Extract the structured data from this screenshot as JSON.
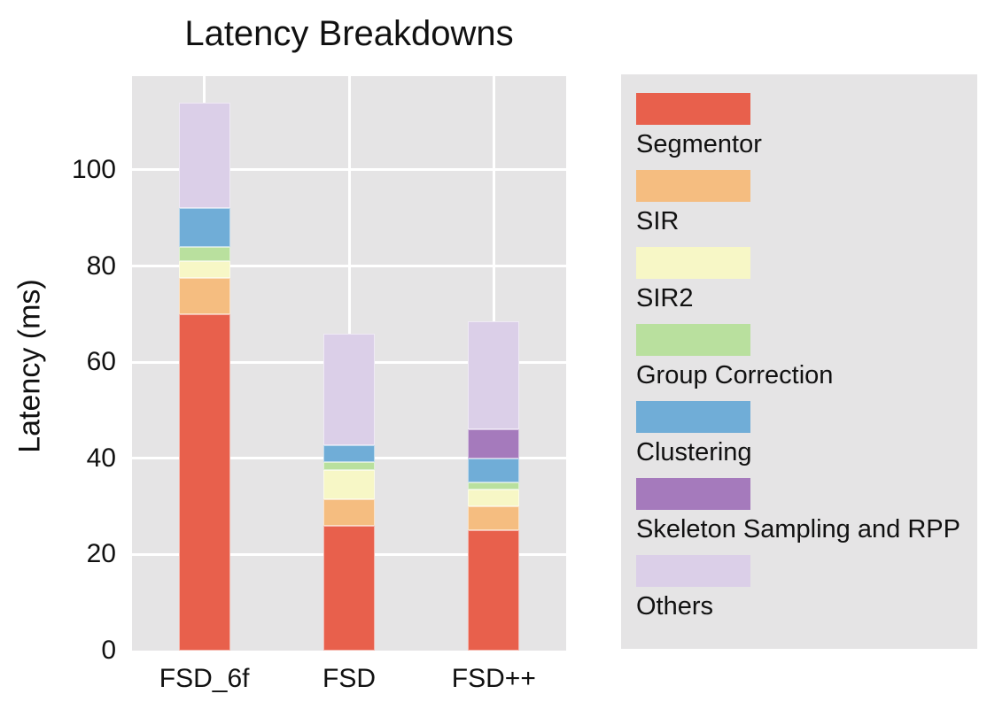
{
  "chart_data": {
    "type": "bar",
    "stacked": true,
    "title": "Latency Breakdowns",
    "xlabel": "",
    "ylabel": "Latency (ms)",
    "categories": [
      "FSD_6f",
      "FSD",
      "FSD++"
    ],
    "yticks": [
      0,
      20,
      40,
      60,
      80,
      100
    ],
    "ylim": [
      0,
      119.5
    ],
    "grid": true,
    "legend_position": "right",
    "plot_background": "#e5e4e5",
    "gridline_color": "#ffffff",
    "series": [
      {
        "name": "Segmentor",
        "color": "#e8604c",
        "values": [
          70,
          26,
          25
        ]
      },
      {
        "name": "SIR",
        "color": "#f5bd80",
        "values": [
          7.5,
          5.5,
          5
        ]
      },
      {
        "name": "SIR2",
        "color": "#f7f7c6",
        "values": [
          3.5,
          6,
          3.5
        ]
      },
      {
        "name": "Group Correction",
        "color": "#b9e09e",
        "values": [
          3,
          1.7,
          1.5
        ]
      },
      {
        "name": "Clustering",
        "color": "#70add7",
        "values": [
          8,
          3.6,
          5
        ]
      },
      {
        "name": "Skeleton Sampling and RPP",
        "color": "#a57abc",
        "values": [
          0,
          0,
          6
        ]
      },
      {
        "name": "Others",
        "color": "#dbcfe8",
        "values": [
          22,
          23.2,
          22.5
        ]
      }
    ],
    "stack_totals": [
      114,
      66,
      68.5
    ]
  }
}
